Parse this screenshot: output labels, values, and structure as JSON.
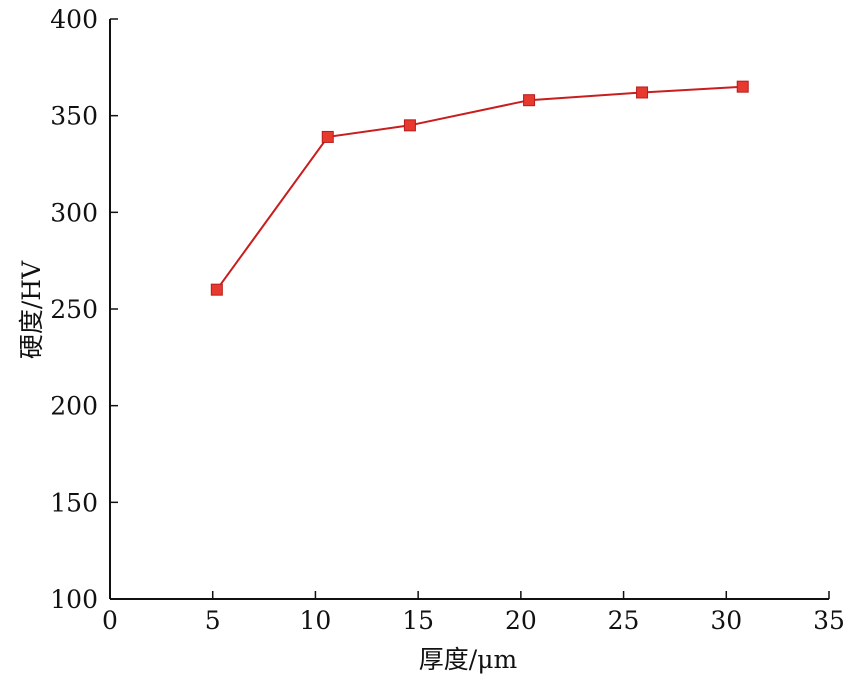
{
  "chart_data": {
    "type": "line",
    "title": "",
    "xlabel": "厚度/μm",
    "ylabel": "硬度/HV",
    "xlim": [
      0,
      35
    ],
    "ylim": [
      100,
      400
    ],
    "xticks": [
      0,
      5,
      10,
      15,
      20,
      25,
      30,
      35
    ],
    "yticks": [
      100,
      150,
      200,
      250,
      300,
      350,
      400
    ],
    "xtick_labels": [
      "0",
      "5",
      "10",
      "15",
      "20",
      "25",
      "30",
      "35"
    ],
    "ytick_labels": [
      "100",
      "150",
      "200",
      "250",
      "300",
      "350",
      "400"
    ],
    "grid": false,
    "legend": "none",
    "series": [
      {
        "color": "#e8392f",
        "line_color": "#c81e1e",
        "marker": "square",
        "x": [
          5.2,
          10.6,
          14.6,
          20.4,
          25.9,
          30.8
        ],
        "y": [
          260,
          339,
          345,
          358,
          362,
          365
        ]
      }
    ]
  }
}
